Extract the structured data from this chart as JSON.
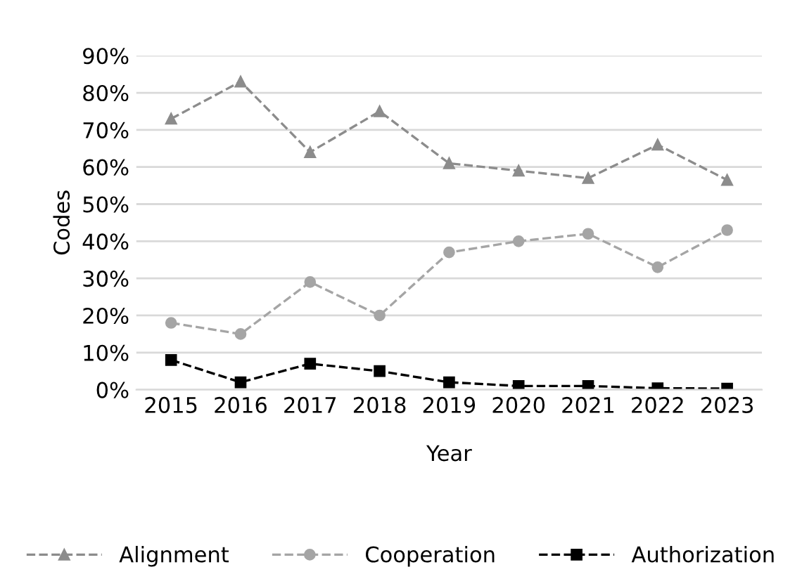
{
  "chart_data": {
    "type": "line",
    "xlabel": "Year",
    "ylabel": "Codes",
    "categories": [
      "2015",
      "2016",
      "2017",
      "2018",
      "2019",
      "2020",
      "2021",
      "2022",
      "2023"
    ],
    "series": [
      {
        "name": "Alignment",
        "color": "#8c8c8c",
        "marker": "triangle",
        "values": [
          73,
          83,
          64,
          75,
          61,
          59,
          57,
          66,
          56.5
        ]
      },
      {
        "name": "Cooperation",
        "color": "#a5a5a5",
        "marker": "circle",
        "values": [
          18,
          15,
          29,
          20,
          37,
          40,
          42,
          33,
          43
        ]
      },
      {
        "name": "Authorization",
        "color": "#000000",
        "marker": "square",
        "values": [
          8,
          2,
          7,
          5,
          2,
          1,
          1,
          0.4,
          0.3
        ]
      }
    ],
    "line_style": "dashed",
    "grid": "y",
    "legend": "bottom",
    "ylim": [
      0,
      90
    ],
    "yticks": [
      {
        "value": 0,
        "label": "0%"
      },
      {
        "value": 10,
        "label": "10%"
      },
      {
        "value": 20,
        "label": "20%"
      },
      {
        "value": 30,
        "label": "30%"
      },
      {
        "value": 40,
        "label": "40%"
      },
      {
        "value": 50,
        "label": "50%"
      },
      {
        "value": 60,
        "label": "60%"
      },
      {
        "value": 70,
        "label": "70%"
      },
      {
        "value": 80,
        "label": "80%"
      },
      {
        "value": 90,
        "label": "90%"
      }
    ]
  }
}
